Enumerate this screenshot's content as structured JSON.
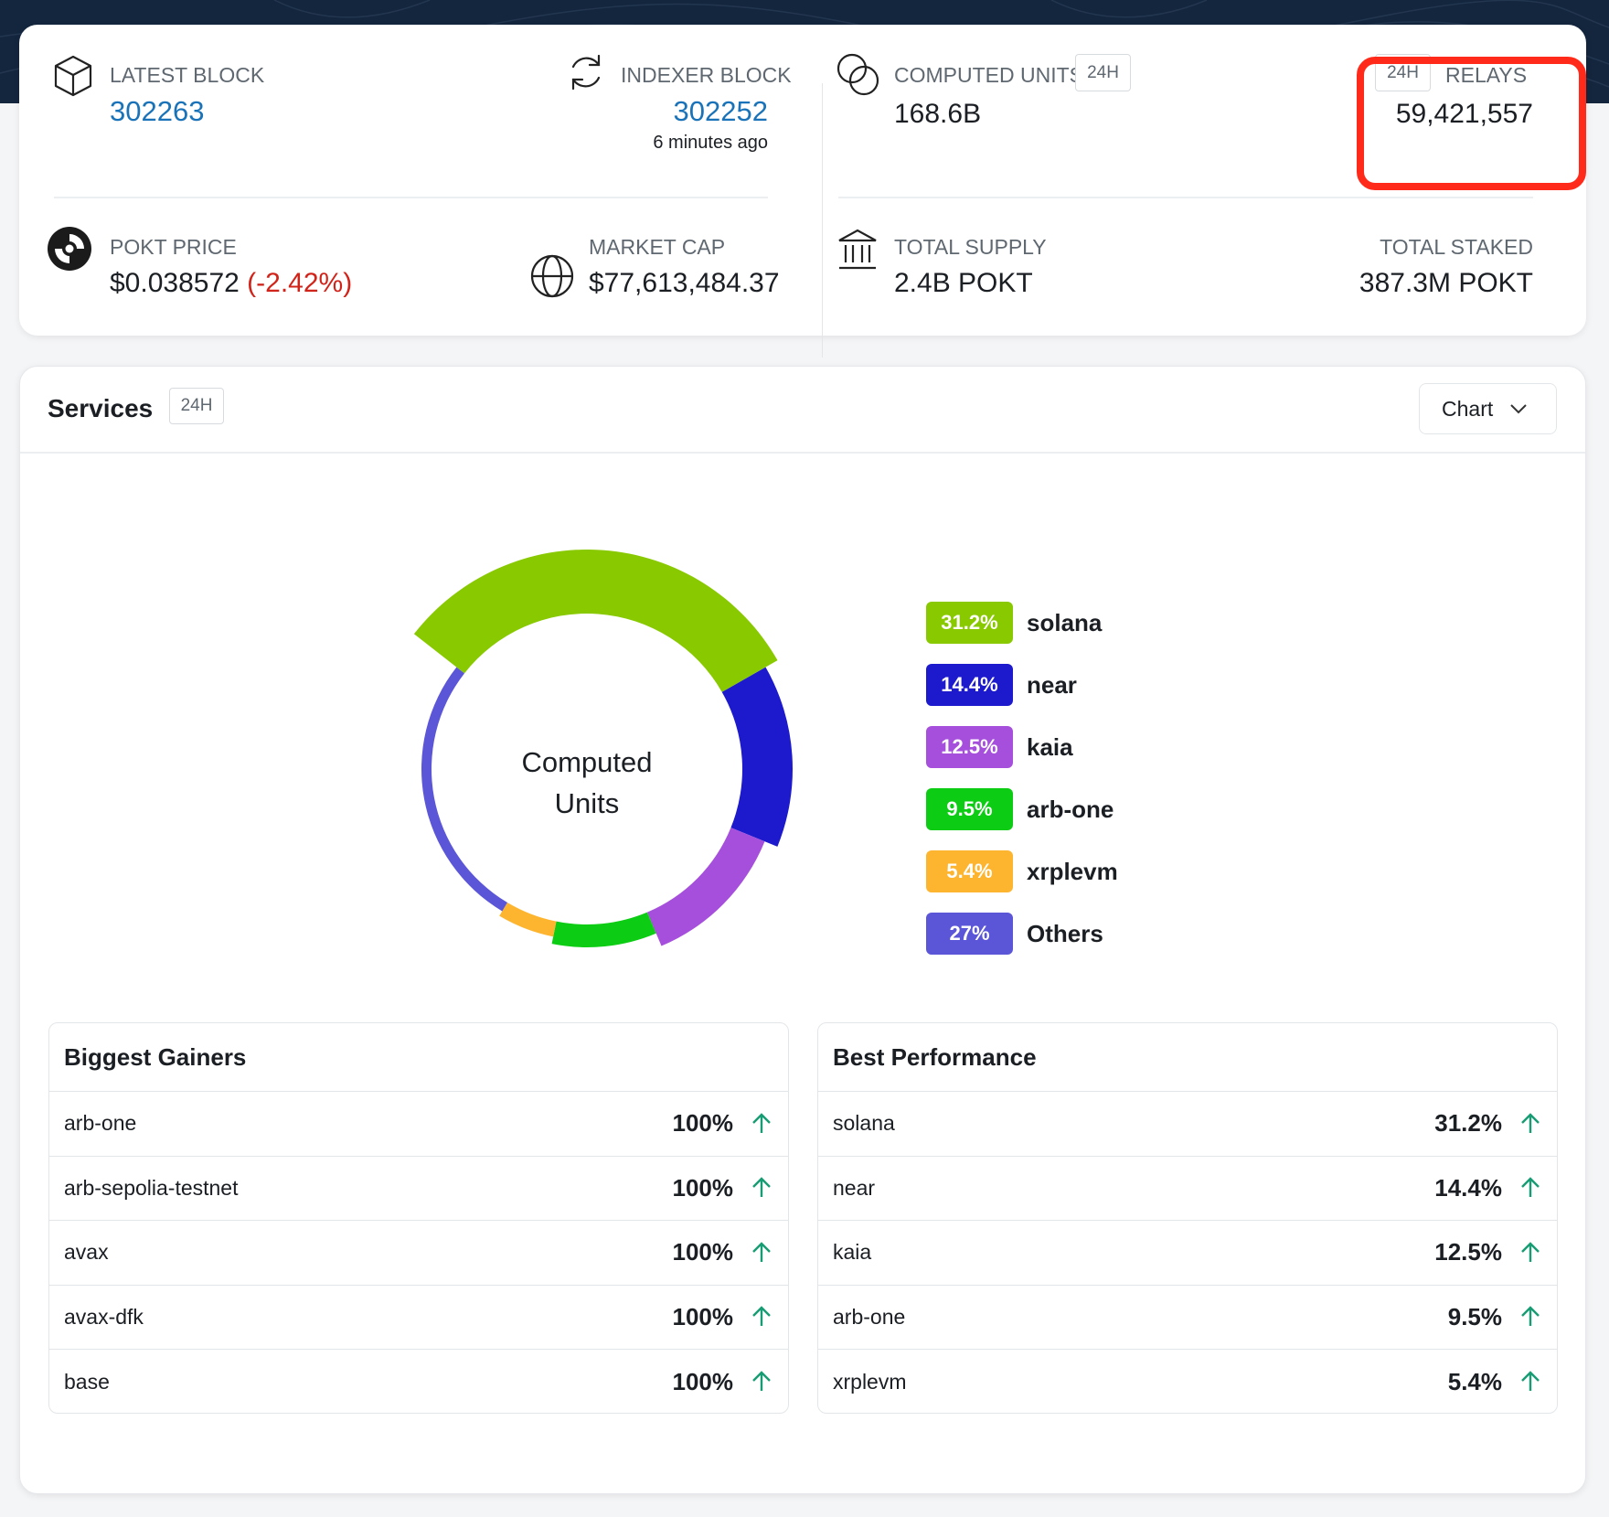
{
  "stats": {
    "latest_block": {
      "label": "LATEST BLOCK",
      "value": "302263"
    },
    "indexer_block": {
      "label": "INDEXER BLOCK",
      "value": "302252",
      "ago": "6 minutes ago"
    },
    "computed_units": {
      "label": "COMPUTED UNITS",
      "badge": "24H",
      "value": "168.6B"
    },
    "relays": {
      "label": "RELAYS",
      "badge": "24H",
      "value": "59,421,557"
    },
    "pokt_price": {
      "label": "POKT PRICE",
      "value": "$0.038572",
      "change": "(-2.42%)"
    },
    "market_cap": {
      "label": "MARKET CAP",
      "value": "$77,613,484.37"
    },
    "total_supply": {
      "label": "TOTAL SUPPLY",
      "value": "2.4B POKT"
    },
    "total_staked": {
      "label": "TOTAL STAKED",
      "value": "387.3M POKT"
    }
  },
  "services": {
    "title": "Services",
    "badge": "24H",
    "view_select": "Chart",
    "chart_center_line1": "Computed",
    "chart_center_line2": "Units"
  },
  "chart_data": {
    "type": "pie",
    "categories": [
      "solana",
      "near",
      "kaia",
      "arb-one",
      "xrplevm",
      "Others"
    ],
    "values": [
      31.2,
      14.4,
      12.5,
      9.5,
      5.4,
      27
    ],
    "labels": [
      "31.2%",
      "14.4%",
      "12.5%",
      "9.5%",
      "5.4%",
      "27%"
    ],
    "colors": [
      "#88c900",
      "#1c1acc",
      "#a54fdc",
      "#0dcc14",
      "#fdb52f",
      "#5b55d8"
    ]
  },
  "biggest_gainers": {
    "title": "Biggest Gainers",
    "rows": [
      {
        "name": "arb-one",
        "value": "100%"
      },
      {
        "name": "arb-sepolia-testnet",
        "value": "100%"
      },
      {
        "name": "avax",
        "value": "100%"
      },
      {
        "name": "avax-dfk",
        "value": "100%"
      },
      {
        "name": "base",
        "value": "100%"
      }
    ]
  },
  "best_performance": {
    "title": "Best Performance",
    "rows": [
      {
        "name": "solana",
        "value": "31.2%"
      },
      {
        "name": "near",
        "value": "14.4%"
      },
      {
        "name": "kaia",
        "value": "12.5%"
      },
      {
        "name": "arb-one",
        "value": "9.5%"
      },
      {
        "name": "xrplevm",
        "value": "5.4%"
      }
    ]
  },
  "colors": {
    "accent_link": "#1a73b8",
    "negative": "#d0241b",
    "arrow_up": "#179c73",
    "highlight": "#ff2a1a"
  }
}
